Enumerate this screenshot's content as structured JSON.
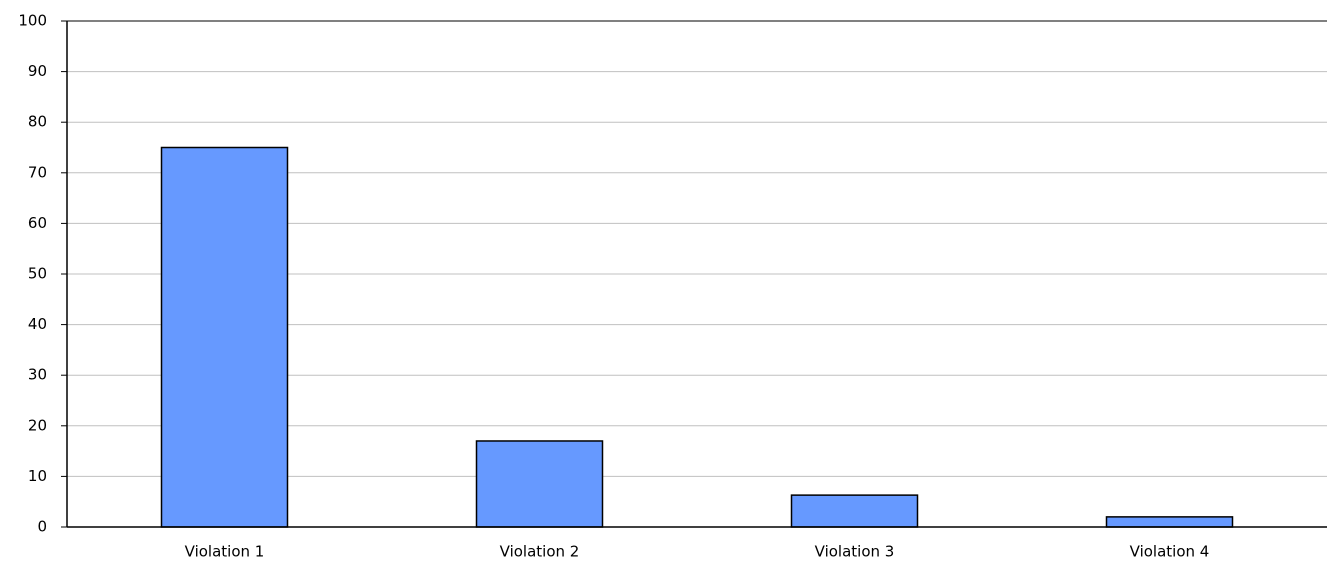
{
  "chart_data": {
    "type": "bar",
    "categories": [
      "Violation 1",
      "Violation 2",
      "Violation 3",
      "Violation 4"
    ],
    "values": [
      75,
      17,
      6.3,
      2
    ],
    "color": "#6699ff",
    "ylim": [
      0,
      100
    ],
    "yticks": [
      0,
      10,
      20,
      30,
      40,
      50,
      60,
      70,
      80,
      90,
      100
    ],
    "grid": true
  }
}
